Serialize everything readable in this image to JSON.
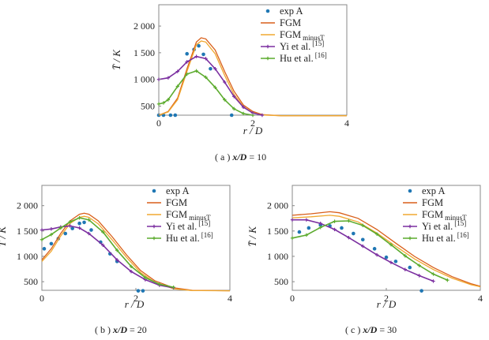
{
  "figure": {
    "panels": [
      {
        "id": "a",
        "caption": {
          "prefix": "( a )",
          "condition": "x/D",
          "eq": "=",
          "value": "10"
        },
        "ylabel": "T̄ / K",
        "xlabel": "r / D",
        "xlim": [
          0,
          4
        ],
        "ylim": [
          330,
          2400
        ],
        "xticks": [
          "0",
          "2",
          "4"
        ],
        "yticks": [
          "500",
          "1 000",
          "1 500",
          "2 000"
        ],
        "legend": [
          {
            "label": "exp A",
            "sub": "",
            "sup": ""
          },
          {
            "label": "FGM",
            "sub": "",
            "sup": ""
          },
          {
            "label": "FGM",
            "sub": "minusT",
            "sup": ""
          },
          {
            "label": "Yi et al.",
            "sub": "",
            "sup": "[15]"
          },
          {
            "label": "Hu et al.",
            "sub": "",
            "sup": "[16]"
          }
        ]
      },
      {
        "id": "b",
        "caption": {
          "prefix": "( b )",
          "condition": "x/D",
          "eq": "=",
          "value": "20"
        },
        "ylabel": "T̄ / K",
        "xlabel": "r / D",
        "xlim": [
          0,
          4
        ],
        "ylim": [
          330,
          2400
        ],
        "xticks": [
          "0",
          "2",
          "4"
        ],
        "yticks": [
          "500",
          "1 000",
          "1 500",
          "2 000"
        ],
        "legend": [
          {
            "label": "exp A",
            "sub": "",
            "sup": ""
          },
          {
            "label": "FGM",
            "sub": "",
            "sup": ""
          },
          {
            "label": "FGM",
            "sub": "minusT",
            "sup": ""
          },
          {
            "label": "Yi et al.",
            "sub": "",
            "sup": "[15]"
          },
          {
            "label": "Hu et al.",
            "sub": "",
            "sup": "[16]"
          }
        ]
      },
      {
        "id": "c",
        "caption": {
          "prefix": "( c )",
          "condition": "x/D",
          "eq": "=",
          "value": "30"
        },
        "ylabel": "T̄ / K",
        "xlabel": "r / D",
        "xlim": [
          0,
          4
        ],
        "ylim": [
          330,
          2400
        ],
        "xticks": [
          "0",
          "2",
          "4"
        ],
        "yticks": [
          "500",
          "1 000",
          "1 500",
          "2 000"
        ],
        "legend": [
          {
            "label": "exp A",
            "sub": "",
            "sup": ""
          },
          {
            "label": "FGM",
            "sub": "",
            "sup": ""
          },
          {
            "label": "FGM",
            "sub": "minusT",
            "sup": ""
          },
          {
            "label": "Yi et al.",
            "sub": "",
            "sup": "[15]"
          },
          {
            "label": "Hu et al.",
            "sub": "",
            "sup": "[16]"
          }
        ]
      }
    ]
  },
  "colors": {
    "exp": "#1f77b4",
    "fgm": "#d95f1a",
    "fgm_minusT": "#f0a830",
    "yi": "#7b2fa0",
    "hu": "#5cab2e",
    "axis": "#888888"
  },
  "chart_data": [
    {
      "type": "line",
      "panel": "a",
      "xlim": [
        0,
        4
      ],
      "ylim": [
        330,
        2400
      ],
      "series": [
        {
          "name": "exp A",
          "style": "markers",
          "x": [
            0.0,
            0.1,
            0.25,
            0.35,
            0.6,
            0.75,
            0.85,
            0.95,
            1.1,
            1.55
          ],
          "y": [
            330,
            330,
            330,
            330,
            1480,
            1560,
            1630,
            1470,
            1200,
            330
          ]
        },
        {
          "name": "FGM",
          "style": "line",
          "x": [
            0,
            0.2,
            0.4,
            0.6,
            0.8,
            0.9,
            1.0,
            1.2,
            1.4,
            1.6,
            1.8,
            2.0,
            2.2,
            2.6,
            4.0
          ],
          "y": [
            330,
            400,
            650,
            1200,
            1700,
            1780,
            1760,
            1550,
            1150,
            780,
            520,
            400,
            340,
            320,
            320
          ]
        },
        {
          "name": "FGM minusT",
          "style": "line",
          "x": [
            0,
            0.2,
            0.4,
            0.6,
            0.8,
            0.9,
            1.0,
            1.2,
            1.4,
            1.6,
            1.8,
            2.0,
            2.2,
            2.6,
            4.0
          ],
          "y": [
            330,
            390,
            620,
            1150,
            1650,
            1720,
            1700,
            1480,
            1080,
            720,
            490,
            380,
            335,
            320,
            320
          ]
        },
        {
          "name": "Yi et al.",
          "style": "line-markers",
          "x": [
            0,
            0.2,
            0.4,
            0.6,
            0.8,
            1.0,
            1.2,
            1.4,
            1.6,
            1.8,
            2.0,
            2.2
          ],
          "y": [
            1000,
            1030,
            1150,
            1330,
            1430,
            1390,
            1200,
            950,
            680,
            480,
            370,
            330
          ]
        },
        {
          "name": "Hu et al.",
          "style": "line-markers",
          "x": [
            0,
            0.1,
            0.2,
            0.4,
            0.6,
            0.8,
            1.0,
            1.2,
            1.4,
            1.6,
            1.8,
            2.0
          ],
          "y": [
            540,
            560,
            620,
            870,
            1100,
            1160,
            1040,
            850,
            620,
            450,
            360,
            330
          ]
        }
      ]
    },
    {
      "type": "line",
      "panel": "b",
      "xlim": [
        0,
        4
      ],
      "ylim": [
        330,
        2400
      ],
      "series": [
        {
          "name": "exp A",
          "style": "markers",
          "x": [
            0.05,
            0.2,
            0.35,
            0.5,
            0.65,
            0.8,
            0.9,
            1.05,
            1.25,
            1.45,
            1.6,
            2.05,
            2.15
          ],
          "y": [
            1150,
            1250,
            1350,
            1450,
            1550,
            1650,
            1670,
            1520,
            1280,
            1050,
            900,
            320,
            320
          ]
        },
        {
          "name": "FGM",
          "style": "line",
          "x": [
            0,
            0.2,
            0.4,
            0.6,
            0.8,
            0.9,
            1.0,
            1.2,
            1.5,
            1.8,
            2.1,
            2.4,
            2.8,
            3.2,
            4.0
          ],
          "y": [
            930,
            1150,
            1450,
            1700,
            1830,
            1850,
            1830,
            1700,
            1380,
            1030,
            720,
            520,
            380,
            330,
            320
          ]
        },
        {
          "name": "FGM minusT",
          "style": "line",
          "x": [
            0,
            0.2,
            0.4,
            0.6,
            0.8,
            0.9,
            1.0,
            1.2,
            1.5,
            1.8,
            2.1,
            2.4,
            2.8,
            3.2,
            4.0
          ],
          "y": [
            900,
            1100,
            1400,
            1650,
            1770,
            1790,
            1770,
            1640,
            1320,
            980,
            680,
            490,
            360,
            325,
            320
          ]
        },
        {
          "name": "Yi et al.",
          "style": "line-markers",
          "x": [
            0,
            0.2,
            0.4,
            0.6,
            0.8,
            1.0,
            1.3,
            1.6,
            1.9,
            2.2,
            2.5,
            2.8
          ],
          "y": [
            1520,
            1540,
            1580,
            1600,
            1560,
            1450,
            1220,
            930,
            700,
            540,
            430,
            380
          ]
        },
        {
          "name": "Hu et al.",
          "style": "line-markers",
          "x": [
            0,
            0.2,
            0.4,
            0.6,
            0.8,
            1.0,
            1.3,
            1.6,
            1.9,
            2.2,
            2.5,
            2.8
          ],
          "y": [
            1330,
            1430,
            1560,
            1680,
            1760,
            1720,
            1480,
            1120,
            800,
            580,
            450,
            390
          ]
        }
      ]
    },
    {
      "type": "line",
      "panel": "c",
      "xlim": [
        0,
        4
      ],
      "ylim": [
        330,
        2400
      ],
      "series": [
        {
          "name": "exp A",
          "style": "markers",
          "x": [
            0.15,
            0.35,
            0.6,
            0.8,
            1.05,
            1.3,
            1.5,
            1.75,
            2.0,
            2.2,
            2.5,
            2.75
          ],
          "y": [
            1480,
            1560,
            1620,
            1600,
            1560,
            1450,
            1330,
            1150,
            980,
            900,
            780,
            320
          ]
        },
        {
          "name": "FGM",
          "style": "line",
          "x": [
            0,
            0.4,
            0.8,
            1.0,
            1.4,
            1.8,
            2.2,
            2.6,
            3.0,
            3.4,
            3.8,
            4.0
          ],
          "y": [
            1810,
            1840,
            1880,
            1860,
            1750,
            1530,
            1260,
            1000,
            780,
            600,
            460,
            410
          ]
        },
        {
          "name": "FGM minusT",
          "style": "line",
          "x": [
            0,
            0.4,
            0.8,
            1.0,
            1.4,
            1.8,
            2.2,
            2.6,
            3.0,
            3.4,
            3.8,
            4.0
          ],
          "y": [
            1760,
            1780,
            1810,
            1790,
            1680,
            1460,
            1200,
            950,
            740,
            570,
            440,
            400
          ]
        },
        {
          "name": "Yi et al.",
          "style": "line-markers",
          "x": [
            0,
            0.3,
            0.6,
            0.9,
            1.2,
            1.5,
            1.8,
            2.1,
            2.4,
            2.7,
            3.0
          ],
          "y": [
            1720,
            1720,
            1650,
            1530,
            1370,
            1200,
            1030,
            880,
            740,
            620,
            510
          ]
        },
        {
          "name": "Hu et al.",
          "style": "line-markers",
          "x": [
            0,
            0.3,
            0.6,
            0.9,
            1.2,
            1.5,
            1.8,
            2.1,
            2.4,
            2.7,
            3.0,
            3.3
          ],
          "y": [
            1360,
            1420,
            1570,
            1690,
            1700,
            1610,
            1440,
            1230,
            1010,
            820,
            650,
            530
          ]
        }
      ]
    }
  ]
}
